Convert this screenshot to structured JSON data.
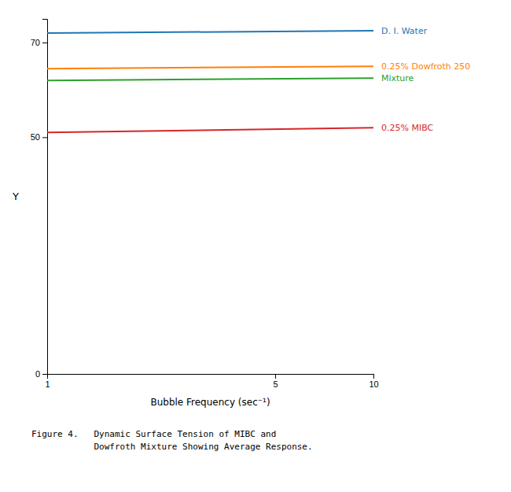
{
  "chart_data": {
    "type": "line",
    "xlabel": "Bubble Frequency (sec⁻¹)",
    "ylabel": "Y",
    "log": "x",
    "x": [
      1,
      10
    ],
    "xlim": [
      1,
      10
    ],
    "xticks": [
      1,
      5,
      10
    ],
    "ylim": [
      0,
      75
    ],
    "yticks": [
      0,
      50,
      70
    ],
    "series": [
      {
        "name": "D. I. Water",
        "values": [
          72.0,
          72.5
        ]
      },
      {
        "name": "0.25% Dowfroth 250",
        "values": [
          64.5,
          65.0
        ]
      },
      {
        "name": "Mixture",
        "values": [
          62.0,
          62.5
        ]
      },
      {
        "name": "0.25% MIBC",
        "values": [
          51.0,
          52.0
        ]
      }
    ],
    "caption": [
      "Figure 4.   Dynamic Surface Tension of MIBC and",
      "            Dowfroth Mixture Showing Average Response."
    ]
  }
}
